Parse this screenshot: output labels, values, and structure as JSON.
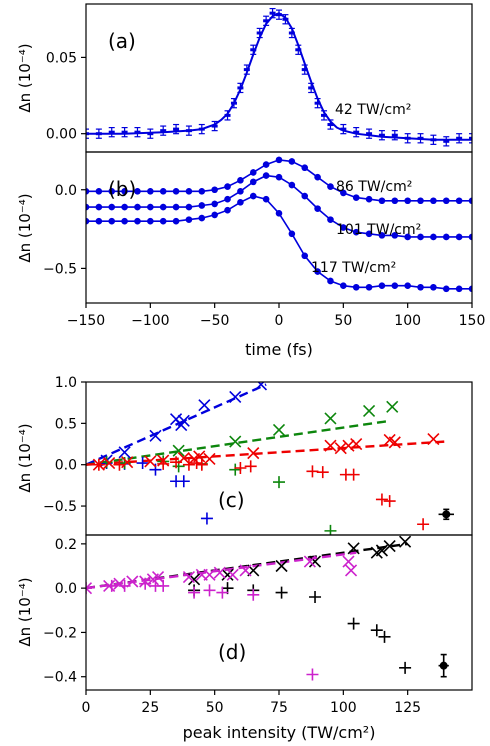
{
  "chart_data": [
    {
      "id": "a",
      "type": "line",
      "panel_label": "(a)",
      "xlabel": "",
      "ylabel": "Δn (10⁻⁴)",
      "xlim": [
        -150,
        150
      ],
      "ylim": [
        -0.012,
        0.085
      ],
      "yticks": [
        0.0,
        0.05
      ],
      "ytick_labels": [
        "0.00",
        "0.05"
      ],
      "series": [
        {
          "name": "42 TW/cm²",
          "color": "#0000dd",
          "points_x": [
            -150,
            -140,
            -130,
            -120,
            -110,
            -100,
            -90,
            -80,
            -70,
            -60,
            -50,
            -40,
            -35,
            -30,
            -25,
            -20,
            -15,
            -10,
            -5,
            0,
            5,
            10,
            15,
            20,
            25,
            30,
            35,
            40,
            50,
            60,
            70,
            80,
            90,
            100,
            110,
            120,
            130,
            140,
            150
          ],
          "points_y": [
            0.0,
            0.0,
            0.001,
            0.001,
            0.001,
            0.0,
            0.002,
            0.003,
            0.002,
            0.003,
            0.005,
            0.012,
            0.02,
            0.03,
            0.042,
            0.055,
            0.066,
            0.074,
            0.079,
            0.078,
            0.075,
            0.066,
            0.055,
            0.042,
            0.03,
            0.02,
            0.012,
            0.006,
            0.003,
            0.001,
            0.0,
            -0.001,
            -0.001,
            -0.003,
            -0.003,
            -0.004,
            -0.005,
            -0.003,
            -0.003
          ],
          "error": 0.003,
          "fit_x": [
            -150,
            -120,
            -90,
            -70,
            -60,
            -50,
            -45,
            -40,
            -35,
            -30,
            -25,
            -20,
            -15,
            -10,
            -5,
            0,
            5,
            10,
            15,
            20,
            25,
            30,
            35,
            40,
            45,
            50,
            60,
            80,
            100,
            120,
            150
          ],
          "fit_y": [
            0.0,
            0.0,
            0.001,
            0.002,
            0.003,
            0.006,
            0.009,
            0.013,
            0.02,
            0.029,
            0.04,
            0.052,
            0.063,
            0.072,
            0.077,
            0.079,
            0.076,
            0.069,
            0.058,
            0.046,
            0.034,
            0.023,
            0.014,
            0.008,
            0.004,
            0.002,
            0.0,
            -0.002,
            -0.003,
            -0.004,
            -0.004
          ]
        }
      ],
      "annotations": [
        "42 TW/cm²"
      ]
    },
    {
      "id": "b",
      "type": "line",
      "panel_label": "(b)",
      "xlabel": "time (fs)",
      "ylabel": "Δn (10⁻⁴)",
      "xlim": [
        -150,
        150
      ],
      "ylim": [
        -0.72,
        0.24
      ],
      "xticks": [
        -150,
        -100,
        -50,
        0,
        50,
        100,
        150
      ],
      "xtick_labels": [
        "−150",
        "−100",
        "−50",
        "0",
        "50",
        "100",
        "150"
      ],
      "yticks": [
        0.0,
        -0.5
      ],
      "ytick_labels": [
        "0.0",
        "−0.5"
      ],
      "series": [
        {
          "name": "86 TW/cm²",
          "color": "#0000dd",
          "points_x": [
            -150,
            -140,
            -130,
            -120,
            -110,
            -100,
            -90,
            -80,
            -70,
            -60,
            -50,
            -40,
            -30,
            -20,
            -10,
            0,
            10,
            20,
            30,
            40,
            50,
            60,
            70,
            80,
            90,
            100,
            110,
            120,
            130,
            140,
            150
          ],
          "points_y": [
            -0.01,
            -0.01,
            -0.01,
            -0.01,
            -0.01,
            -0.01,
            -0.01,
            -0.01,
            -0.01,
            -0.01,
            0.0,
            0.02,
            0.06,
            0.11,
            0.16,
            0.19,
            0.18,
            0.14,
            0.08,
            0.02,
            -0.02,
            -0.05,
            -0.06,
            -0.07,
            -0.07,
            -0.07,
            -0.07,
            -0.07,
            -0.07,
            -0.07,
            -0.07
          ]
        },
        {
          "name": "101 TW/cm²",
          "color": "#0000dd",
          "points_x": [
            -150,
            -140,
            -130,
            -120,
            -110,
            -100,
            -90,
            -80,
            -70,
            -60,
            -50,
            -40,
            -30,
            -20,
            -10,
            0,
            10,
            20,
            30,
            40,
            50,
            60,
            70,
            80,
            90,
            100,
            110,
            120,
            130,
            140,
            150
          ],
          "points_y": [
            -0.11,
            -0.11,
            -0.11,
            -0.11,
            -0.11,
            -0.11,
            -0.11,
            -0.11,
            -0.11,
            -0.1,
            -0.09,
            -0.06,
            -0.01,
            0.05,
            0.09,
            0.08,
            0.03,
            -0.04,
            -0.12,
            -0.19,
            -0.24,
            -0.27,
            -0.28,
            -0.29,
            -0.29,
            -0.3,
            -0.3,
            -0.3,
            -0.3,
            -0.3,
            -0.3
          ]
        },
        {
          "name": "117 TW/cm²",
          "color": "#0000dd",
          "points_x": [
            -150,
            -140,
            -130,
            -120,
            -110,
            -100,
            -90,
            -80,
            -70,
            -60,
            -50,
            -40,
            -30,
            -20,
            -10,
            0,
            10,
            20,
            30,
            40,
            50,
            60,
            70,
            80,
            90,
            100,
            110,
            120,
            130,
            140,
            150
          ],
          "points_y": [
            -0.2,
            -0.2,
            -0.2,
            -0.2,
            -0.2,
            -0.2,
            -0.2,
            -0.2,
            -0.19,
            -0.18,
            -0.16,
            -0.13,
            -0.08,
            -0.04,
            -0.06,
            -0.15,
            -0.28,
            -0.42,
            -0.52,
            -0.58,
            -0.61,
            -0.62,
            -0.62,
            -0.61,
            -0.61,
            -0.61,
            -0.62,
            -0.62,
            -0.63,
            -0.63,
            -0.63
          ]
        }
      ],
      "error": 0.02,
      "annotations": [
        "86 TW/cm²",
        "101 TW/cm²",
        "117 TW/cm²"
      ]
    },
    {
      "id": "c",
      "type": "scatter",
      "panel_label": "(c)",
      "xlabel": "",
      "ylabel": "Δn (10⁻⁴)",
      "xlim": [
        0,
        150
      ],
      "ylim": [
        -0.85,
        1.0
      ],
      "yticks": [
        1.0,
        0.5,
        0.0,
        -0.5
      ],
      "ytick_labels": [
        "1.0",
        "0.5",
        "0.0",
        "−0.5"
      ],
      "series": [
        {
          "color": "#0000dd",
          "x_marks": {
            "x": [
              8,
              15,
              27,
              35,
              37,
              38,
              46,
              58,
              68
            ],
            "y": [
              0.05,
              0.15,
              0.35,
              0.55,
              0.48,
              0.53,
              0.72,
              0.82,
              0.97
            ]
          },
          "plus_marks": {
            "x": [
              8,
              15,
              22,
              27,
              35,
              38,
              47
            ],
            "y": [
              0.02,
              0.01,
              0.02,
              -0.06,
              -0.2,
              -0.2,
              -0.65
            ]
          },
          "fit": {
            "x": [
              0,
              70
            ],
            "y": [
              0.0,
              0.97
            ]
          }
        },
        {
          "color": "#0c860c",
          "x_marks": {
            "x": [
              36,
              58,
              75,
              95,
              110,
              119
            ],
            "y": [
              0.17,
              0.28,
              0.42,
              0.56,
              0.65,
              0.7
            ]
          },
          "plus_marks": {
            "x": [
              8,
              15,
              30,
              36,
              45,
              58,
              75,
              95
            ],
            "y": [
              0.03,
              0.02,
              0.04,
              -0.02,
              0.01,
              -0.06,
              -0.21,
              -0.8
            ]
          },
          "fit": {
            "x": [
              0,
              118
            ],
            "y": [
              0.0,
              0.53
            ]
          }
        },
        {
          "color": "#ee0000",
          "x_marks": {
            "x": [
              5,
              9,
              16,
              25,
              30,
              38,
              42,
              44,
              48,
              65,
              95,
              99,
              102,
              105,
              118,
              120,
              135
            ],
            "y": [
              0.0,
              0.02,
              0.03,
              0.04,
              0.05,
              0.08,
              0.07,
              0.1,
              0.07,
              0.14,
              0.23,
              0.2,
              0.23,
              0.25,
              0.3,
              0.27,
              0.31
            ]
          },
          "plus_marks": {
            "x": [
              5,
              13,
              30,
              35,
              40,
              43,
              45,
              60,
              64,
              88,
              92,
              101,
              104,
              115,
              118,
              131
            ],
            "y": [
              0.0,
              0.0,
              0.01,
              0.03,
              0.0,
              0.02,
              0.0,
              -0.04,
              -0.02,
              -0.08,
              -0.09,
              -0.12,
              -0.12,
              -0.42,
              -0.44,
              -0.72
            ]
          },
          "fit": {
            "x": [
              0,
              140
            ],
            "y": [
              0.0,
              0.28
            ]
          }
        },
        {
          "color": "#000000",
          "errorbar_point": {
            "x": 140,
            "y": -0.6,
            "xerr": 3,
            "yerr": 0.06
          }
        }
      ]
    },
    {
      "id": "d",
      "type": "scatter",
      "panel_label": "(d)",
      "xlabel": "peak intensity (TW/cm²)",
      "ylabel": "Δn (10⁻⁴)",
      "xlim": [
        0,
        150
      ],
      "ylim": [
        -0.46,
        0.24
      ],
      "xticks": [
        0,
        25,
        50,
        75,
        100,
        125
      ],
      "xtick_labels": [
        "0",
        "25",
        "50",
        "75",
        "100",
        "125"
      ],
      "yticks": [
        0.2,
        0.0,
        -0.2,
        -0.4
      ],
      "ytick_labels": [
        "0.2",
        "0.0",
        "−0.2",
        "−0.4"
      ],
      "series": [
        {
          "color": "#000000",
          "x_marks": {
            "x": [
              42,
              55,
              65,
              76,
              89,
              104,
              113,
              115,
              118,
              124
            ],
            "y": [
              0.04,
              0.06,
              0.08,
              0.1,
              0.12,
              0.18,
              0.16,
              0.17,
              0.19,
              0.21
            ]
          },
          "plus_marks": {
            "x": [
              42,
              55,
              65,
              76,
              89,
              104,
              113,
              116,
              124
            ],
            "y": [
              -0.01,
              0.0,
              -0.01,
              -0.02,
              -0.04,
              -0.16,
              -0.19,
              -0.22,
              -0.36
            ]
          },
          "fit": {
            "x": [
              0,
              125
            ],
            "y": [
              0.0,
              0.2
            ]
          }
        },
        {
          "color": "#cc22cc",
          "x_marks": {
            "x": [
              0,
              9,
              13,
              18,
              23,
              26,
              28,
              40,
              45,
              48,
              52,
              57,
              62,
              87,
              102,
              103
            ],
            "y": [
              0.0,
              0.01,
              0.02,
              0.03,
              0.03,
              0.04,
              0.05,
              0.05,
              0.06,
              0.06,
              0.07,
              0.06,
              0.08,
              0.12,
              0.12,
              0.08
            ]
          },
          "plus_marks": {
            "x": [
              0,
              10,
              15,
              23,
              27,
              30,
              42,
              48,
              53,
              65,
              88
            ],
            "y": [
              0.0,
              0.01,
              0.01,
              0.02,
              0.01,
              0.01,
              -0.02,
              -0.01,
              -0.02,
              -0.03,
              -0.39
            ]
          },
          "fit": {
            "x": [
              0,
              105
            ],
            "y": [
              0.0,
              0.16
            ]
          }
        },
        {
          "color": "#000000",
          "errorbar_point": {
            "x": 139,
            "y": -0.35,
            "xerr": 2,
            "yerr": 0.05
          }
        }
      ]
    }
  ]
}
